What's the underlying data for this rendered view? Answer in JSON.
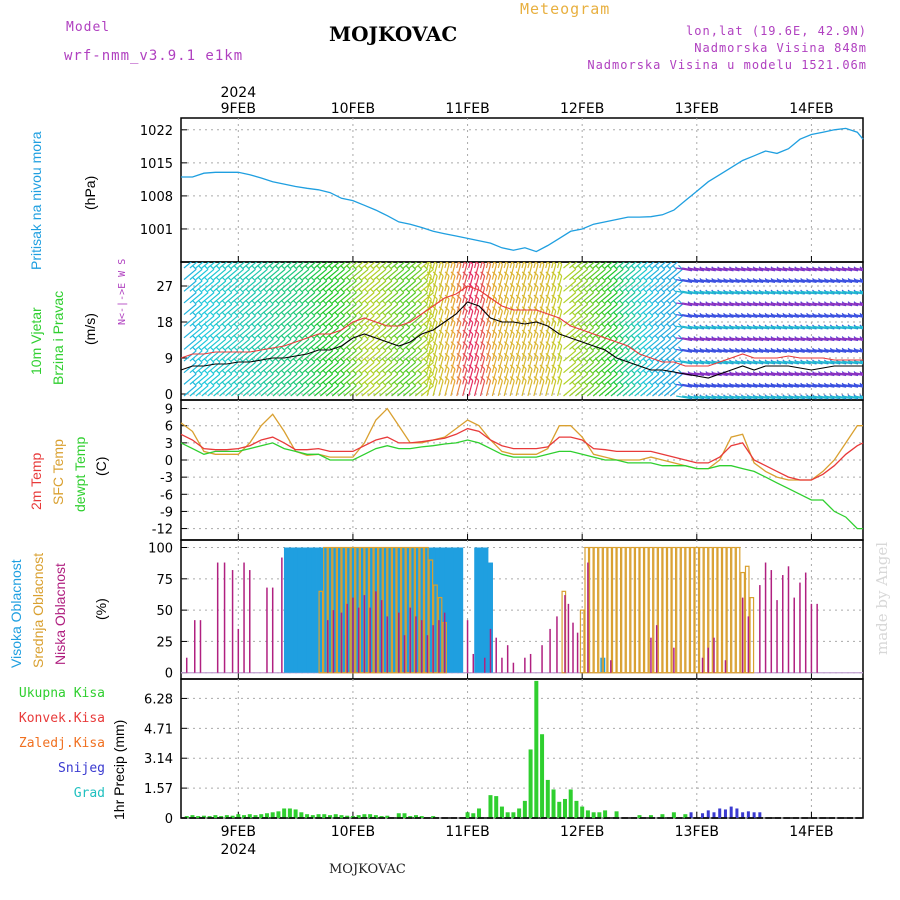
{
  "header": {
    "model_label": "Model",
    "model_name": "wrf-nmm_v3.9.1 e1km",
    "location": "MOJKOVAC",
    "product": "Meteogram",
    "coords": "lon,lat (19.6E, 42.9N)",
    "elevation": "Nadmorska Visina 848m",
    "model_elevation": "Nadmorska Visina u modelu 1521.06m",
    "footer_location": "MOJKOVAC",
    "watermark": "made by Angel"
  },
  "colors": {
    "pressure": "#1f9fe0",
    "temp2m": "#e83a3a",
    "sfc": "#d9a030",
    "dew": "#2fcf2f",
    "high_cloud": "#1f9fe0",
    "mid_cloud": "#d9a030",
    "low_cloud": "#b02080",
    "precip_total": "#2fcf2f",
    "precip_conv": "#e83a3a",
    "precip_frozen": "#f07020",
    "snow": "#3a3ad0",
    "grad": "#20c0c0",
    "purple_text": "#b040c0",
    "orange_text": "#e8b040"
  },
  "chart_data": {
    "type": "line",
    "x_axis": {
      "year_label": "2024",
      "ticks": [
        "9FEB",
        "10FEB",
        "11FEB",
        "12FEB",
        "13FEB",
        "14FEB"
      ],
      "range_days": [
        -0.5,
        5.45
      ]
    },
    "pressure": {
      "label_lines": [
        "Pritisak na nivou mora",
        "(hPa)"
      ],
      "ylim": [
        994,
        1024.5
      ],
      "yticks": [
        1001,
        1008,
        1015,
        1022
      ],
      "x": [
        -0.5,
        -0.4,
        -0.3,
        -0.2,
        -0.1,
        0,
        0.1,
        0.2,
        0.3,
        0.4,
        0.5,
        0.6,
        0.7,
        0.8,
        0.9,
        1.0,
        1.1,
        1.2,
        1.3,
        1.4,
        1.5,
        1.6,
        1.7,
        1.8,
        1.9,
        2.0,
        2.1,
        2.2,
        2.3,
        2.4,
        2.5,
        2.6,
        2.7,
        2.8,
        2.9,
        3.0,
        3.1,
        3.2,
        3.3,
        3.4,
        3.5,
        3.6,
        3.7,
        3.8,
        3.9,
        4.0,
        4.1,
        4.2,
        4.3,
        4.4,
        4.5,
        4.6,
        4.7,
        4.8,
        4.9,
        5.0,
        5.1,
        5.2,
        5.3,
        5.4,
        5.45
      ],
      "values": [
        1012,
        1012,
        1012.8,
        1013,
        1013,
        1013,
        1012.5,
        1011.8,
        1011,
        1010.5,
        1010,
        1009.6,
        1009.3,
        1008.7,
        1007.5,
        1007,
        1006,
        1005,
        1003.8,
        1002.5,
        1002,
        1001.3,
        1000.5,
        1000,
        999.5,
        999,
        998.5,
        998,
        997,
        996.5,
        997,
        996.2,
        997.5,
        999,
        1000.5,
        1001,
        1002,
        1002.5,
        1003,
        1003.5,
        1003.5,
        1003.6,
        1004,
        1005,
        1007,
        1009,
        1011,
        1012.5,
        1014,
        1015.5,
        1016.5,
        1017.5,
        1017,
        1018,
        1020,
        1021,
        1021.5,
        1022,
        1022.3,
        1021.5,
        1020
      ]
    },
    "wind": {
      "label_lines": [
        "10m Vjetar",
        "Brzina i Pravac",
        "(m/s)"
      ],
      "compass": "N<-|->E W S",
      "ylim": [
        -1.5,
        33
      ],
      "yticks": [
        0,
        9,
        18,
        27
      ],
      "x": [
        -0.5,
        -0.4,
        -0.3,
        -0.2,
        -0.1,
        0,
        0.1,
        0.2,
        0.3,
        0.4,
        0.5,
        0.6,
        0.7,
        0.8,
        0.9,
        1.0,
        1.1,
        1.2,
        1.3,
        1.4,
        1.5,
        1.6,
        1.7,
        1.8,
        1.9,
        2.0,
        2.1,
        2.2,
        2.3,
        2.4,
        2.5,
        2.6,
        2.7,
        2.8,
        2.9,
        3.0,
        3.1,
        3.2,
        3.3,
        3.4,
        3.5,
        3.6,
        3.7,
        3.8,
        3.9,
        4.0,
        4.1,
        4.2,
        4.3,
        4.4,
        4.5,
        4.6,
        4.7,
        4.8,
        4.9,
        5.0,
        5.1,
        5.2,
        5.3,
        5.4,
        5.45
      ],
      "speed": [
        6,
        7,
        7,
        7.5,
        7.5,
        8,
        8,
        8.5,
        9,
        9,
        9.5,
        10,
        11,
        11,
        12,
        14,
        15,
        14,
        13,
        12,
        13,
        15,
        16,
        18,
        20,
        23,
        22,
        19,
        18,
        18,
        17.5,
        18,
        17,
        15,
        14,
        13,
        12,
        11,
        9,
        8,
        7,
        6,
        6,
        5.5,
        5,
        4.5,
        4,
        5,
        6,
        7,
        6,
        7,
        7,
        7,
        6.5,
        6,
        6.5,
        7,
        7,
        7,
        7
      ],
      "gust": [
        9,
        10,
        10,
        10.5,
        10.5,
        10.5,
        10.5,
        11,
        11.5,
        12,
        13,
        14,
        15,
        15,
        16,
        18,
        19,
        18,
        17,
        17,
        18,
        20,
        22,
        24,
        25,
        27,
        26,
        24,
        22,
        21,
        21,
        21,
        20,
        19,
        17,
        16,
        15,
        14,
        13,
        12,
        10,
        9,
        8,
        8,
        7,
        7,
        7,
        8,
        9,
        10,
        9,
        9,
        9,
        9.5,
        9,
        9,
        9,
        8.5,
        8.5,
        8.5,
        8.5
      ]
    },
    "temperature": {
      "label_lines": [
        "2m Temp",
        "SFC Temp",
        "dewpt Temp",
        "(C)"
      ],
      "ylim": [
        -14,
        10.5
      ],
      "yticks": [
        -12,
        -9,
        -6,
        -3,
        0,
        3,
        6,
        9
      ],
      "x": [
        -0.5,
        -0.4,
        -0.3,
        -0.2,
        -0.1,
        0,
        0.1,
        0.2,
        0.3,
        0.4,
        0.5,
        0.6,
        0.7,
        0.8,
        0.9,
        1.0,
        1.1,
        1.2,
        1.3,
        1.4,
        1.5,
        1.6,
        1.7,
        1.8,
        1.9,
        2.0,
        2.1,
        2.2,
        2.3,
        2.4,
        2.5,
        2.6,
        2.7,
        2.8,
        2.9,
        3.0,
        3.1,
        3.2,
        3.3,
        3.4,
        3.5,
        3.6,
        3.7,
        3.8,
        3.9,
        4.0,
        4.1,
        4.2,
        4.3,
        4.4,
        4.5,
        4.6,
        4.7,
        4.8,
        4.9,
        5.0,
        5.1,
        5.2,
        5.3,
        5.4,
        5.45
      ],
      "t2m": [
        4.5,
        3.5,
        2,
        1.8,
        1.8,
        2,
        2.5,
        3.5,
        4,
        3,
        1.8,
        1.8,
        2,
        1.5,
        1.5,
        1.5,
        2.5,
        3.5,
        4,
        3,
        3,
        3.2,
        3.5,
        3.8,
        4.5,
        5.5,
        5,
        3.5,
        2.5,
        2,
        2,
        2,
        2.3,
        4,
        4,
        3.5,
        2,
        1.8,
        1.5,
        1.5,
        1.5,
        1.5,
        1,
        0.5,
        0,
        -0.5,
        -0.5,
        0.5,
        2.5,
        3,
        0,
        -1,
        -2,
        -3,
        -3.5,
        -3.5,
        -2.5,
        -1,
        1,
        2.5,
        3
      ],
      "sfc": [
        6.5,
        5,
        1.5,
        1,
        1,
        1,
        3,
        6,
        8,
        5,
        1.5,
        0.8,
        1,
        0.5,
        0.5,
        0.5,
        3,
        7,
        9,
        6,
        3,
        3,
        3.5,
        4,
        5.5,
        7,
        6,
        3.5,
        1.5,
        1,
        1,
        1,
        2,
        6,
        6,
        4,
        1,
        0.5,
        0,
        0,
        0,
        0.5,
        0,
        -0.5,
        -1,
        -1.5,
        -1.5,
        0,
        4,
        4.5,
        -0.5,
        -2,
        -3,
        -3.5,
        -3.5,
        -3.5,
        -2,
        0,
        3,
        6,
        6
      ],
      "dew": [
        3,
        2,
        1,
        1.5,
        1.5,
        1.5,
        2,
        2.5,
        3,
        2,
        1.5,
        1,
        1,
        0,
        0,
        0,
        1,
        2,
        2.5,
        2,
        2,
        2.3,
        2.5,
        2.8,
        3,
        3.5,
        3,
        2,
        1,
        0.5,
        0.5,
        0.5,
        1,
        1.5,
        1.5,
        1,
        0.5,
        0,
        0,
        -0.5,
        -0.5,
        -0.5,
        -1,
        -1,
        -1,
        -1.5,
        -1.5,
        -1,
        -1,
        -1.5,
        -2,
        -3,
        -4,
        -5,
        -6,
        -7,
        -7,
        -9,
        -10,
        -12,
        -12
      ]
    },
    "clouds": {
      "label_lines": [
        "Visoka Oblacnost",
        "Srednja Oblacnost",
        "Niska Oblacnost",
        "(%)"
      ],
      "ylim": [
        -5,
        106
      ],
      "yticks": [
        0,
        25,
        50,
        75,
        100
      ],
      "high_x": [
        0.42,
        0.46,
        0.5,
        0.54,
        0.58,
        0.62,
        0.66,
        0.7,
        0.74,
        0.78,
        0.82,
        0.86,
        0.9,
        0.94,
        0.98,
        1.02,
        1.06,
        1.1,
        1.14,
        1.18,
        1.22,
        1.26,
        1.3,
        1.34,
        1.38,
        1.42,
        1.46,
        1.5,
        1.54,
        1.58,
        1.62,
        1.66,
        1.7,
        1.74,
        1.78,
        1.82,
        1.86,
        1.9,
        1.94,
        2.08,
        2.12,
        2.16,
        2.2,
        3.18
      ],
      "high_values": [
        100,
        100,
        100,
        100,
        100,
        100,
        100,
        100,
        100,
        100,
        100,
        100,
        100,
        100,
        100,
        100,
        100,
        100,
        100,
        100,
        100,
        100,
        100,
        100,
        100,
        100,
        100,
        100,
        100,
        100,
        100,
        100,
        100,
        100,
        100,
        100,
        100,
        100,
        100,
        100,
        100,
        100,
        88,
        12
      ],
      "mid_x": [
        0.72,
        0.76,
        0.8,
        0.84,
        0.88,
        0.92,
        0.96,
        1.0,
        1.04,
        1.08,
        1.12,
        1.16,
        1.2,
        1.24,
        1.28,
        1.32,
        1.36,
        1.4,
        1.44,
        1.48,
        1.52,
        1.56,
        1.6,
        1.64,
        1.68,
        1.72,
        1.76,
        1.8,
        2.84,
        3.0,
        3.04,
        3.08,
        3.12,
        3.16,
        3.2,
        3.24,
        3.28,
        3.32,
        3.36,
        3.4,
        3.44,
        3.48,
        3.52,
        3.56,
        3.6,
        3.64,
        3.68,
        3.72,
        3.76,
        3.8,
        3.84,
        3.88,
        3.92,
        3.96,
        4.0,
        4.04,
        4.08,
        4.12,
        4.16,
        4.2,
        4.24,
        4.28,
        4.32,
        4.36,
        4.4,
        4.44,
        4.48
      ],
      "mid_values": [
        65,
        100,
        100,
        100,
        100,
        100,
        100,
        100,
        100,
        100,
        100,
        100,
        100,
        100,
        100,
        100,
        100,
        100,
        100,
        100,
        100,
        100,
        100,
        100,
        90,
        70,
        60,
        40,
        65,
        50,
        100,
        100,
        100,
        100,
        100,
        100,
        100,
        100,
        100,
        100,
        100,
        100,
        100,
        100,
        100,
        100,
        100,
        100,
        100,
        100,
        100,
        100,
        100,
        100,
        100,
        100,
        100,
        100,
        100,
        100,
        100,
        100,
        100,
        100,
        80,
        85,
        60
      ],
      "low_x": [
        -0.45,
        -0.38,
        -0.33,
        -0.18,
        -0.12,
        -0.05,
        0.0,
        0.05,
        0.1,
        0.25,
        0.3,
        0.38,
        0.78,
        0.83,
        0.9,
        0.95,
        1.0,
        1.05,
        1.1,
        1.15,
        1.2,
        1.25,
        1.3,
        1.4,
        1.45,
        1.5,
        1.55,
        1.6,
        1.65,
        1.7,
        1.75,
        1.8,
        2.0,
        2.05,
        2.15,
        2.2,
        2.25,
        2.3,
        2.35,
        2.4,
        2.5,
        2.55,
        2.65,
        2.72,
        2.78,
        2.85,
        2.88,
        2.92,
        2.96,
        3.05,
        3.25,
        3.6,
        3.65,
        3.8,
        4.05,
        4.1,
        4.15,
        4.25,
        4.4,
        4.45,
        4.55,
        4.6,
        4.65,
        4.7,
        4.75,
        4.8,
        4.85,
        4.9,
        4.95,
        5.0,
        5.05
      ],
      "low_values": [
        12,
        42,
        42,
        88,
        88,
        82,
        35,
        88,
        82,
        68,
        68,
        92,
        42,
        50,
        48,
        55,
        60,
        52,
        62,
        52,
        65,
        58,
        45,
        48,
        30,
        52,
        45,
        42,
        30,
        38,
        42,
        48,
        42,
        15,
        12,
        35,
        28,
        12,
        22,
        8,
        12,
        15,
        22,
        35,
        45,
        62,
        55,
        40,
        32,
        88,
        10,
        28,
        38,
        20,
        12,
        20,
        28,
        10,
        60,
        45,
        70,
        88,
        82,
        58,
        78,
        85,
        60,
        72,
        80,
        55,
        55
      ]
    },
    "precip": {
      "label_lines": [
        "Ukupna Kisa",
        "Konvek.Kisa",
        "Zaledj.Kisa",
        "Snijeg",
        "Grad",
        "1hr Precip (mm)"
      ],
      "ylim": [
        0,
        7.3
      ],
      "yticks": [
        0,
        1.57,
        3.14,
        4.71,
        6.28
      ],
      "total_x": [
        -0.45,
        -0.4,
        -0.35,
        -0.3,
        -0.25,
        -0.2,
        -0.15,
        -0.1,
        -0.05,
        0,
        0.05,
        0.1,
        0.15,
        0.2,
        0.25,
        0.3,
        0.35,
        0.4,
        0.45,
        0.5,
        0.55,
        0.6,
        0.65,
        0.7,
        0.75,
        0.8,
        0.85,
        0.9,
        0.95,
        1.0,
        1.05,
        1.1,
        1.15,
        1.2,
        1.25,
        1.3,
        1.4,
        1.45,
        1.5,
        1.55,
        1.6,
        1.7,
        2.0,
        2.05,
        2.1,
        2.2,
        2.25,
        2.3,
        2.35,
        2.4,
        2.45,
        2.5,
        2.55,
        2.6,
        2.65,
        2.7,
        2.75,
        2.8,
        2.85,
        2.9,
        2.95,
        3.0,
        3.05,
        3.1,
        3.15,
        3.2,
        3.3,
        3.5,
        3.6,
        3.7,
        3.8,
        3.9
      ],
      "total_values": [
        0.1,
        0.15,
        0.1,
        0.12,
        0.1,
        0.15,
        0.1,
        0.15,
        0.12,
        0.2,
        0.15,
        0.2,
        0.15,
        0.2,
        0.25,
        0.3,
        0.35,
        0.5,
        0.5,
        0.45,
        0.3,
        0.2,
        0.15,
        0.2,
        0.2,
        0.15,
        0.2,
        0.15,
        0.12,
        0.1,
        0.15,
        0.2,
        0.2,
        0.15,
        0.1,
        0.12,
        0.25,
        0.25,
        0.1,
        0.15,
        0.1,
        0.1,
        0.3,
        0.25,
        0.5,
        1.2,
        1.15,
        0.6,
        0.3,
        0.3,
        0.5,
        0.9,
        3.6,
        7.2,
        4.4,
        2.0,
        1.5,
        0.85,
        1.0,
        1.5,
        0.9,
        0.6,
        0.4,
        0.3,
        0.3,
        0.4,
        0.35,
        0.15,
        0.15,
        0.2,
        0.3,
        0.2
      ],
      "snow_x": [
        3.95,
        4.05,
        4.1,
        4.15,
        4.2,
        4.25,
        4.3,
        4.35,
        4.4,
        4.45,
        4.5,
        4.55
      ],
      "snow_values": [
        0.3,
        0.25,
        0.4,
        0.3,
        0.5,
        0.45,
        0.6,
        0.5,
        0.3,
        0.35,
        0.3,
        0.3
      ]
    }
  }
}
